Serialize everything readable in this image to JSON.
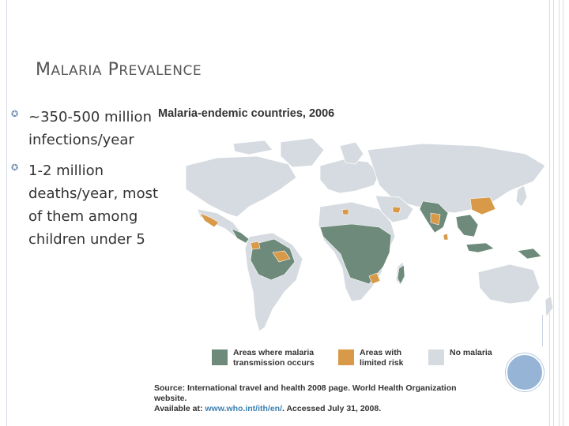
{
  "slide": {
    "title_first_cap": "M",
    "title_first_rest": "ALARIA",
    "title_second_cap": "P",
    "title_second_rest": "REVALENCE"
  },
  "bullets": [
    {
      "text": "~350-500 million infections/year"
    },
    {
      "text": "1-2 million deaths/year, most of them among children under 5"
    }
  ],
  "map": {
    "title": "Malaria-endemic countries, 2006",
    "colors": {
      "transmission": "#6d8a7a",
      "limited": "#d89a48",
      "none": "#d5dbe0",
      "water": "#ffffff"
    },
    "legend": [
      {
        "label": "Areas where malaria transmission occurs",
        "color": "#6d8a7a"
      },
      {
        "label": "Areas with limited risk",
        "color": "#d89a48"
      },
      {
        "label": "No malaria",
        "color": "#d5dbe0"
      }
    ],
    "source_line1": "Source: International travel and health 2008 page. World Health Organization website.",
    "source_line2_prefix": "Available at: ",
    "source_link": "www.who.int/ith/en/",
    "source_line2_suffix": ". Accessed July 31, 2008."
  }
}
